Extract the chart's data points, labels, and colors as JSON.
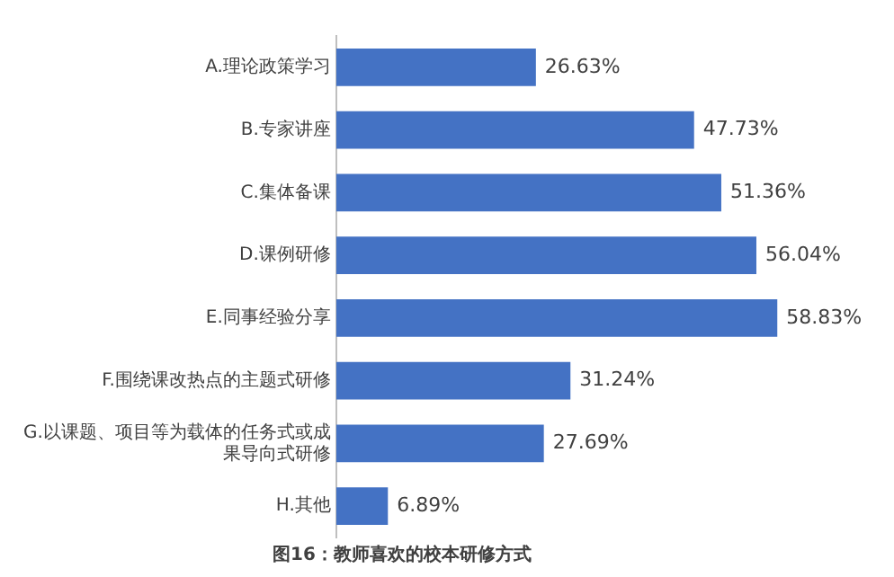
{
  "chart_data": {
    "type": "bar",
    "orientation": "horizontal",
    "title": "图16：教师喜欢的校本研修方式",
    "categories": [
      "A.理论政策学习",
      "B.专家讲座",
      "C.集体备课",
      "D.课例研修",
      "E.同事经验分享",
      "F.围绕课改热点的主题式研修",
      "G.以课题、项目等为载体的任务式或成果导向式研修",
      "H.其他"
    ],
    "values": [
      26.63,
      47.73,
      51.36,
      56.04,
      58.83,
      31.24,
      27.69,
      6.89
    ],
    "value_labels": [
      "26.63%",
      "47.73%",
      "51.36%",
      "56.04%",
      "58.83%",
      "31.24%",
      "27.69%",
      "6.89%"
    ],
    "color": "#4472c4",
    "tick_labels": "y"
  }
}
